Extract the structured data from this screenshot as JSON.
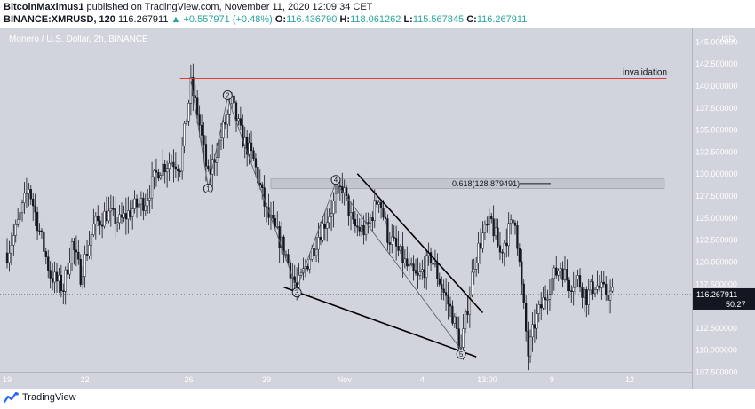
{
  "header": {
    "author": "BitcoinMaximus1",
    "published_text": "published on TradingView.com, November 11, 2020 12:09:34 CET",
    "symbol": "BINANCE:XMRUSD, 120",
    "last": "116.267911",
    "change": "+0.557971 (+0.48%)",
    "o_label": "O:",
    "o_value": "116.436790",
    "h_label": "H:",
    "h_value": "118.061262",
    "l_label": "L:",
    "l_value": "115.567845",
    "c_label": "C:",
    "c_value": "116.267911"
  },
  "footer": {
    "brand": "TradingView"
  },
  "colors": {
    "background": "#d1d4dc",
    "candle": "#131722",
    "invalidation_line": "#e53935",
    "fib_band": "#c2c5cd"
  },
  "chart_data": {
    "type": "candlestick",
    "title": "Monero / U.S. Dollar, 2h, BINANCE",
    "currency_label": "USD",
    "ylim": [
      107.5,
      146.5
    ],
    "y_ticks": [
      {
        "value": 145.0,
        "label": "145.000000"
      },
      {
        "value": 142.5,
        "label": "142.500000"
      },
      {
        "value": 140.0,
        "label": "140.000000"
      },
      {
        "value": 137.5,
        "label": "137.500000"
      },
      {
        "value": 135.0,
        "label": "135.000000"
      },
      {
        "value": 132.5,
        "label": "132.500000"
      },
      {
        "value": 130.0,
        "label": "130.000000"
      },
      {
        "value": 127.5,
        "label": "127.500000"
      },
      {
        "value": 125.0,
        "label": "125.000000"
      },
      {
        "value": 122.5,
        "label": "122.500000"
      },
      {
        "value": 120.0,
        "label": "120.000000"
      },
      {
        "value": 117.5,
        "label": "117.500000"
      },
      {
        "value": 115.0,
        "label": "115.0"
      },
      {
        "value": 112.5,
        "label": "112.500000"
      },
      {
        "value": 110.0,
        "label": "110.000000"
      },
      {
        "value": 107.5,
        "label": "107.500000"
      }
    ],
    "x_ticks": [
      {
        "bar": 0,
        "label": "19"
      },
      {
        "bar": 36,
        "label": "22"
      },
      {
        "bar": 84,
        "label": "26"
      },
      {
        "bar": 120,
        "label": "29"
      },
      {
        "bar": 156,
        "label": "Nov"
      },
      {
        "bar": 192,
        "label": "4"
      },
      {
        "bar": 222,
        "label": "13:00"
      },
      {
        "bar": 252,
        "label": "9"
      },
      {
        "bar": 288,
        "label": "12"
      }
    ],
    "last_price": {
      "label": "116.267911",
      "countdown": "50:27",
      "value": 116.27
    },
    "anchors": [
      [
        0,
        121.0
      ],
      [
        4,
        123.5
      ],
      [
        10,
        128.5
      ],
      [
        14,
        124.5
      ],
      [
        20,
        118.5
      ],
      [
        26,
        117.0
      ],
      [
        30,
        122.0
      ],
      [
        34,
        118.5
      ],
      [
        40,
        124.0
      ],
      [
        46,
        125.5
      ],
      [
        52,
        124.5
      ],
      [
        58,
        126.0
      ],
      [
        64,
        127.0
      ],
      [
        70,
        130.5
      ],
      [
        76,
        131.5
      ],
      [
        80,
        131.0
      ],
      [
        85,
        140.0
      ],
      [
        88,
        137.0
      ],
      [
        93,
        129.5
      ],
      [
        98,
        133.5
      ],
      [
        104,
        138.0
      ],
      [
        108,
        134.5
      ],
      [
        114,
        131.5
      ],
      [
        120,
        125.5
      ],
      [
        128,
        121.5
      ],
      [
        134,
        116.8
      ],
      [
        139,
        120.0
      ],
      [
        144,
        123.0
      ],
      [
        150,
        126.0
      ],
      [
        155,
        128.6
      ],
      [
        160,
        124.0
      ],
      [
        166,
        123.5
      ],
      [
        172,
        127.5
      ],
      [
        176,
        123.0
      ],
      [
        180,
        121.5
      ],
      [
        186,
        119.0
      ],
      [
        190,
        118.0
      ],
      [
        196,
        120.5
      ],
      [
        202,
        116.5
      ],
      [
        206,
        114.0
      ],
      [
        210,
        110.0
      ],
      [
        213,
        115.0
      ],
      [
        216,
        120.0
      ],
      [
        220,
        123.0
      ],
      [
        224,
        124.5
      ],
      [
        228,
        121.0
      ],
      [
        232,
        123.5
      ],
      [
        235,
        125.0
      ],
      [
        238,
        117.0
      ],
      [
        241,
        109.5
      ],
      [
        244,
        113.0
      ],
      [
        248,
        115.5
      ],
      [
        252,
        118.0
      ],
      [
        256,
        119.5
      ],
      [
        260,
        117.5
      ],
      [
        264,
        118.0
      ],
      [
        268,
        116.0
      ],
      [
        272,
        117.5
      ],
      [
        276,
        116.5
      ],
      [
        280,
        116.3
      ]
    ],
    "annotations": {
      "invalidation": {
        "label": "invalidation",
        "value": 140.8,
        "from_bar": 80,
        "to_bar": 305
      },
      "fib": {
        "label": "0.618(128.879491)",
        "value": 128.88,
        "band": [
          128.3,
          129.4
        ],
        "from_bar": 122,
        "to_bar": 304
      },
      "waves": [
        {
          "label": "1",
          "bar": 93,
          "value": 128.3
        },
        {
          "label": "2",
          "bar": 102,
          "value": 138.9
        },
        {
          "label": "3",
          "bar": 134,
          "value": 116.5
        },
        {
          "label": "4",
          "bar": 152,
          "value": 129.3
        },
        {
          "label": "5",
          "bar": 210,
          "value": 109.5
        }
      ],
      "wave_path": [
        [
          85,
          140.5
        ],
        [
          93,
          128.5
        ],
        [
          102,
          138.6
        ],
        [
          134,
          116.9
        ],
        [
          152,
          129.0
        ],
        [
          210,
          110.0
        ]
      ],
      "trend_lines": [
        {
          "from": [
            162,
            130.0
          ],
          "to": [
            220,
            114.2
          ]
        },
        {
          "from": [
            128,
            117.1
          ],
          "to": [
            217,
            109.2
          ]
        }
      ]
    }
  }
}
